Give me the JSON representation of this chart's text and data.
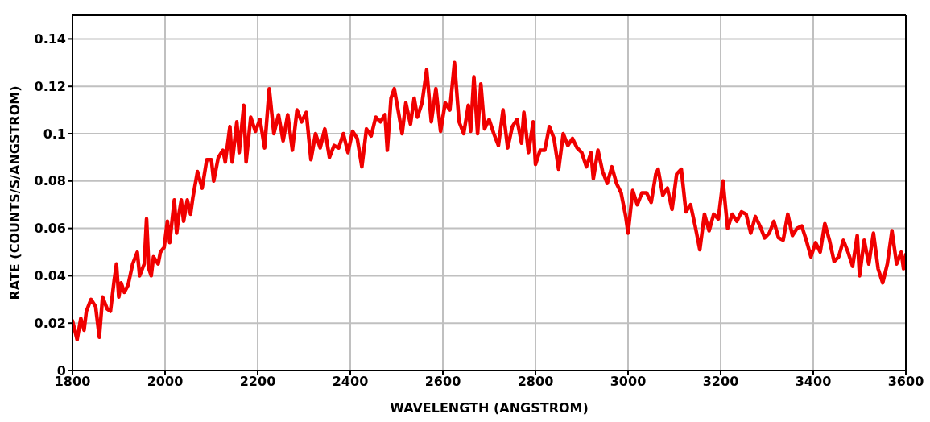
{
  "chart_data": {
    "type": "line",
    "xlabel": "WAVELENGTH (ANGSTROM)",
    "ylabel": "RATE (COUNTS/S/ANGSTROM)",
    "xlim": [
      1800,
      3600
    ],
    "xticks": [
      1800,
      2000,
      2200,
      2400,
      2600,
      2800,
      3000,
      3200,
      3400,
      3600
    ],
    "ylim": [
      0,
      0.15
    ],
    "yticks": [
      0,
      0.02,
      0.04,
      0.06,
      0.08,
      0.1,
      0.12,
      0.14
    ],
    "grid": true,
    "marker": "none",
    "line_style": "solid",
    "series": [
      {
        "color": "#f00000",
        "x": [
          1800,
          1810,
          1818,
          1825,
          1830,
          1840,
          1850,
          1858,
          1865,
          1875,
          1882,
          1890,
          1895,
          1900,
          1905,
          1912,
          1920,
          1930,
          1940,
          1945,
          1955,
          1960,
          1965,
          1970,
          1975,
          1985,
          1990,
          1998,
          2005,
          2010,
          2020,
          2025,
          2030,
          2035,
          2040,
          2048,
          2055,
          2060,
          2070,
          2080,
          2090,
          2100,
          2105,
          2115,
          2125,
          2130,
          2140,
          2145,
          2155,
          2160,
          2170,
          2175,
          2185,
          2195,
          2205,
          2215,
          2225,
          2235,
          2245,
          2255,
          2265,
          2275,
          2285,
          2295,
          2305,
          2315,
          2325,
          2335,
          2345,
          2355,
          2365,
          2375,
          2385,
          2395,
          2405,
          2415,
          2425,
          2435,
          2445,
          2455,
          2465,
          2475,
          2480,
          2488,
          2495,
          2505,
          2512,
          2520,
          2530,
          2538,
          2545,
          2555,
          2565,
          2575,
          2585,
          2595,
          2605,
          2615,
          2625,
          2635,
          2645,
          2655,
          2660,
          2667,
          2675,
          2682,
          2690,
          2700,
          2710,
          2720,
          2730,
          2740,
          2750,
          2760,
          2770,
          2775,
          2785,
          2795,
          2800,
          2810,
          2820,
          2830,
          2840,
          2850,
          2860,
          2870,
          2880,
          2890,
          2900,
          2910,
          2920,
          2925,
          2935,
          2945,
          2955,
          2965,
          2975,
          2985,
          2995,
          3000,
          3010,
          3020,
          3030,
          3040,
          3050,
          3060,
          3065,
          3075,
          3085,
          3095,
          3105,
          3115,
          3125,
          3135,
          3145,
          3155,
          3165,
          3175,
          3185,
          3195,
          3205,
          3215,
          3225,
          3235,
          3245,
          3255,
          3265,
          3275,
          3285,
          3295,
          3305,
          3315,
          3325,
          3335,
          3345,
          3355,
          3365,
          3375,
          3385,
          3395,
          3405,
          3415,
          3425,
          3435,
          3445,
          3455,
          3465,
          3475,
          3485,
          3495,
          3500,
          3510,
          3520,
          3530,
          3540,
          3550,
          3560,
          3570,
          3580,
          3590,
          3595,
          3600
        ],
        "values": [
          0.021,
          0.013,
          0.022,
          0.017,
          0.025,
          0.03,
          0.027,
          0.014,
          0.031,
          0.026,
          0.025,
          0.038,
          0.045,
          0.031,
          0.037,
          0.033,
          0.036,
          0.045,
          0.05,
          0.04,
          0.045,
          0.064,
          0.043,
          0.04,
          0.048,
          0.045,
          0.05,
          0.052,
          0.063,
          0.054,
          0.072,
          0.058,
          0.066,
          0.072,
          0.063,
          0.072,
          0.066,
          0.073,
          0.084,
          0.077,
          0.089,
          0.089,
          0.08,
          0.09,
          0.093,
          0.088,
          0.103,
          0.088,
          0.105,
          0.092,
          0.112,
          0.088,
          0.107,
          0.101,
          0.106,
          0.094,
          0.119,
          0.1,
          0.108,
          0.097,
          0.108,
          0.093,
          0.11,
          0.105,
          0.109,
          0.089,
          0.1,
          0.094,
          0.102,
          0.09,
          0.095,
          0.094,
          0.1,
          0.092,
          0.101,
          0.098,
          0.086,
          0.102,
          0.099,
          0.107,
          0.105,
          0.108,
          0.093,
          0.115,
          0.119,
          0.108,
          0.1,
          0.113,
          0.104,
          0.115,
          0.107,
          0.113,
          0.127,
          0.105,
          0.119,
          0.101,
          0.113,
          0.11,
          0.13,
          0.105,
          0.1,
          0.112,
          0.101,
          0.124,
          0.1,
          0.121,
          0.102,
          0.106,
          0.1,
          0.095,
          0.11,
          0.094,
          0.103,
          0.106,
          0.096,
          0.109,
          0.092,
          0.105,
          0.087,
          0.093,
          0.093,
          0.103,
          0.098,
          0.085,
          0.1,
          0.095,
          0.098,
          0.094,
          0.092,
          0.086,
          0.092,
          0.081,
          0.093,
          0.084,
          0.079,
          0.086,
          0.079,
          0.075,
          0.065,
          0.058,
          0.076,
          0.07,
          0.075,
          0.075,
          0.071,
          0.083,
          0.085,
          0.074,
          0.077,
          0.068,
          0.083,
          0.085,
          0.067,
          0.07,
          0.061,
          0.051,
          0.066,
          0.059,
          0.066,
          0.064,
          0.08,
          0.06,
          0.066,
          0.063,
          0.067,
          0.066,
          0.058,
          0.065,
          0.061,
          0.056,
          0.058,
          0.063,
          0.056,
          0.055,
          0.066,
          0.057,
          0.06,
          0.061,
          0.055,
          0.048,
          0.054,
          0.05,
          0.062,
          0.055,
          0.046,
          0.048,
          0.055,
          0.05,
          0.044,
          0.057,
          0.04,
          0.055,
          0.045,
          0.058,
          0.043,
          0.037,
          0.045,
          0.059,
          0.045,
          0.05,
          0.043,
          0.049
        ]
      }
    ]
  }
}
